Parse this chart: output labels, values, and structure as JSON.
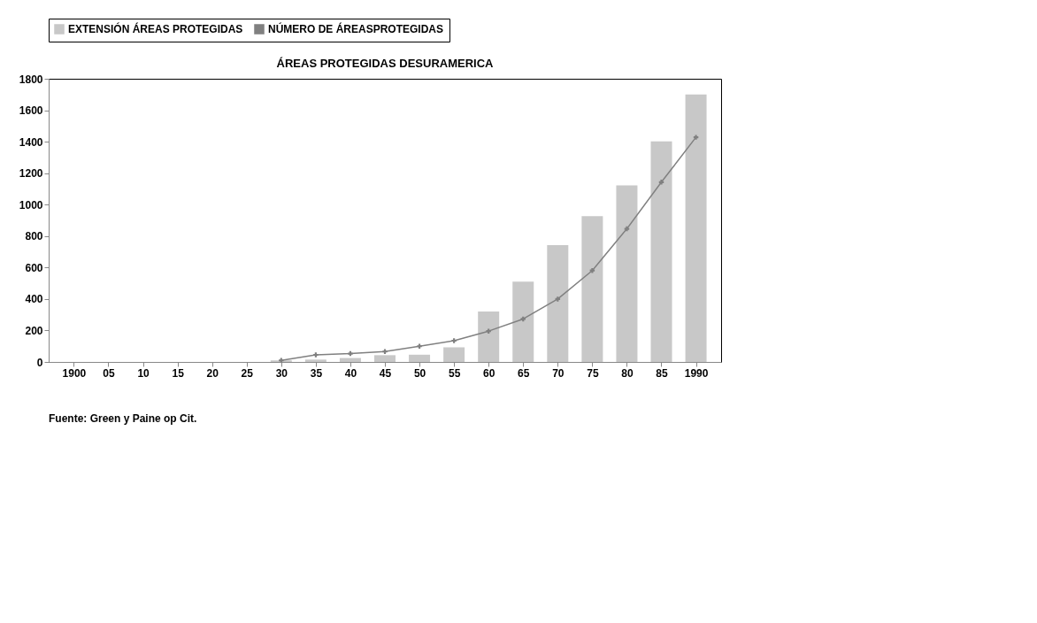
{
  "chart_data": {
    "type": "bar",
    "title": "ÁREAS PROTEGIDAS DESURAMERICA",
    "categories": [
      "1900",
      "05",
      "10",
      "15",
      "20",
      "25",
      "30",
      "35",
      "40",
      "45",
      "50",
      "55",
      "60",
      "65",
      "70",
      "75",
      "80",
      "85",
      "1990"
    ],
    "series": [
      {
        "name": "EXTENSIÓN ÁREAS PROTEGIDAS",
        "color": "#c8c8c8",
        "values": [
          null,
          null,
          null,
          null,
          null,
          null,
          10,
          15,
          25,
          43,
          46,
          93,
          320,
          510,
          742,
          927,
          1122,
          1402,
          1700
        ]
      },
      {
        "name": "NÚMERO DE ÁREASPROTEGIDAS",
        "type": "line",
        "color": "#808080",
        "values": [
          null,
          null,
          null,
          null,
          null,
          null,
          10,
          45,
          53,
          66,
          100,
          135,
          196,
          273,
          400,
          581,
          846,
          1143,
          1428
        ]
      }
    ],
    "ylim": [
      0,
      1800
    ],
    "yticks": [
      0,
      200,
      400,
      600,
      800,
      1000,
      1200,
      1400,
      1600,
      1800
    ],
    "grid": false,
    "legend": "top",
    "marker": "cross",
    "line_style": "solid",
    "annotations": [
      "Fuente: Green y Paine op Cit."
    ]
  }
}
